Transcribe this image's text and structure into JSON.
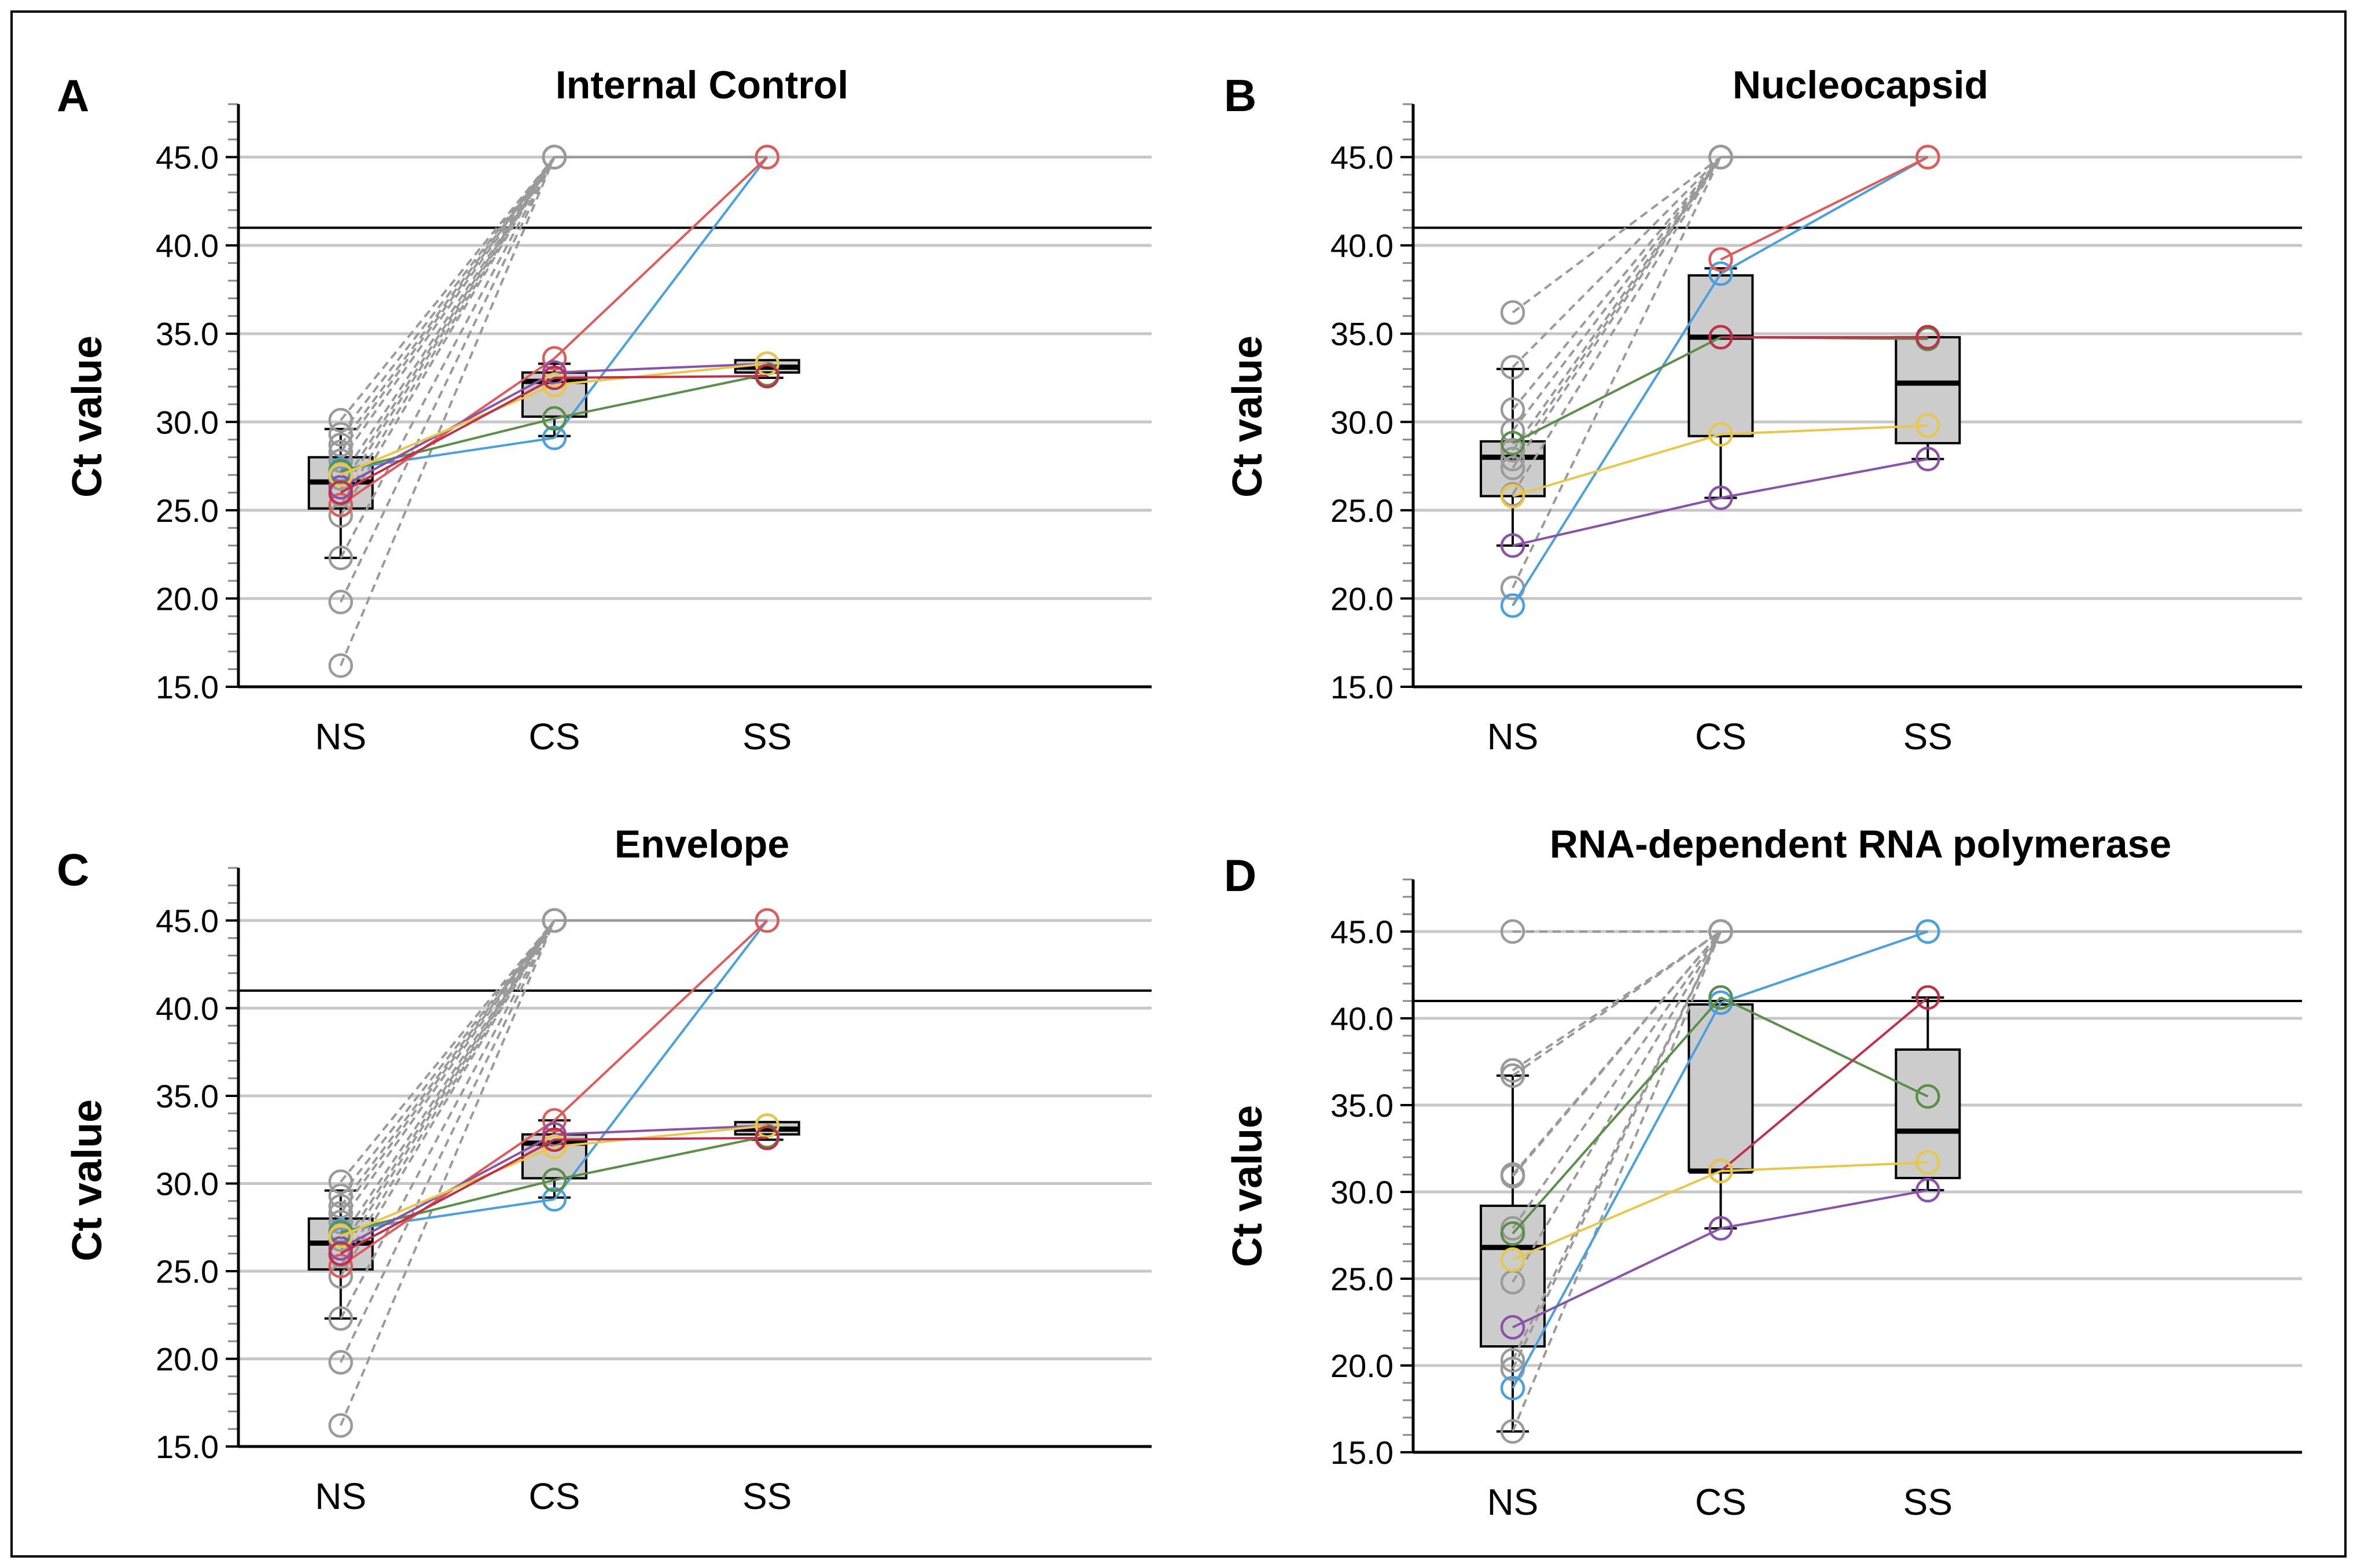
{
  "colors": {
    "blue": "#4a9fde",
    "red": "#e05a5a",
    "green": "#5a8f4a",
    "purple": "#8a52a8",
    "yellow": "#e8c84a",
    "grey": "#9a9a9a",
    "box_fill": "#cccccc"
  },
  "chart_data": [
    {
      "type": "box-with-paired-lines",
      "panel_letter": "A",
      "title": "Internal Control",
      "ylabel": "Ct value",
      "xlabel": "",
      "categories": [
        "NS",
        "CS",
        "SS"
      ],
      "ylim": [
        15,
        48
      ],
      "yticks": [
        "15.0",
        "20.0",
        "25.0",
        "30.0",
        "35.0",
        "40.0",
        "45.0"
      ],
      "ytick_values": [
        15,
        20,
        25,
        30,
        35,
        40,
        45
      ],
      "threshold": 41,
      "boxes": [
        {
          "category": "NS",
          "q1": 25.1,
          "median": 26.6,
          "q3": 28.0,
          "whisker_low": 22.3,
          "whisker_high": 29.6
        },
        {
          "category": "CS",
          "q1": 30.3,
          "median": 32.3,
          "q3": 32.8,
          "whisker_low": 29.2,
          "whisker_high": 33.3
        },
        {
          "category": "SS",
          "q1": 32.8,
          "median": 33.1,
          "q3": 33.5,
          "whisker_low": 32.5,
          "whisker_high": 33.5
        }
      ],
      "grey_series": [
        {
          "values": [
            30.1,
            45.0,
            null
          ]
        },
        {
          "values": [
            29.3,
            45.0,
            null
          ]
        },
        {
          "values": [
            28.7,
            45.0,
            null
          ]
        },
        {
          "values": [
            28.3,
            45.0,
            null
          ]
        },
        {
          "values": [
            27.8,
            45.0,
            null
          ]
        },
        {
          "values": [
            26.8,
            45.0,
            null
          ]
        },
        {
          "values": [
            26.3,
            45.0,
            null
          ]
        },
        {
          "values": [
            25.9,
            45.0,
            null
          ]
        },
        {
          "values": [
            25.3,
            45.0,
            null
          ]
        },
        {
          "values": [
            24.7,
            45.0,
            null
          ]
        },
        {
          "values": [
            22.3,
            45.0,
            null
          ]
        },
        {
          "values": [
            19.8,
            45.0,
            null
          ]
        },
        {
          "values": [
            16.2,
            45.0,
            null
          ]
        },
        {
          "values": [
            null,
            45.0,
            45.0
          ]
        }
      ],
      "series": [
        {
          "name": "blue",
          "color": "#4a9fde",
          "values": [
            27.3,
            29.1,
            45.0
          ]
        },
        {
          "name": "red",
          "color": "#e05a5a",
          "values": [
            25.3,
            33.6,
            45.0
          ]
        },
        {
          "name": "green",
          "color": "#5a8f4a",
          "values": [
            27.2,
            30.2,
            32.7
          ]
        },
        {
          "name": "purple",
          "color": "#8a52a8",
          "values": [
            26.3,
            32.8,
            33.3
          ]
        },
        {
          "name": "yellow",
          "color": "#e8c84a",
          "values": [
            27.0,
            32.1,
            33.3
          ]
        },
        {
          "name": "crimson",
          "color": "#c0304a",
          "values": [
            26.0,
            32.5,
            32.6
          ]
        }
      ]
    },
    {
      "type": "box-with-paired-lines",
      "panel_letter": "B",
      "title": "Nucleocapsid",
      "ylabel": "Ct value",
      "xlabel": "",
      "categories": [
        "NS",
        "CS",
        "SS"
      ],
      "ylim": [
        15,
        48
      ],
      "yticks": [
        "15.0",
        "20.0",
        "25.0",
        "30.0",
        "35.0",
        "40.0",
        "45.0"
      ],
      "ytick_values": [
        15,
        20,
        25,
        30,
        35,
        40,
        45
      ],
      "threshold": 41,
      "boxes": [
        {
          "category": "NS",
          "q1": 25.8,
          "median": 28.0,
          "q3": 28.9,
          "whisker_low": 23.0,
          "whisker_high": 33.0
        },
        {
          "category": "CS",
          "q1": 29.2,
          "median": 34.8,
          "q3": 38.3,
          "whisker_low": 25.7,
          "whisker_high": 38.7
        },
        {
          "category": "SS",
          "q1": 28.8,
          "median": 32.2,
          "q3": 34.8,
          "whisker_low": 27.9,
          "whisker_high": 34.8
        }
      ],
      "grey_series": [
        {
          "values": [
            36.2,
            45.0,
            null
          ]
        },
        {
          "values": [
            33.1,
            45.0,
            null
          ]
        },
        {
          "values": [
            30.7,
            45.0,
            null
          ]
        },
        {
          "values": [
            29.5,
            45.0,
            null
          ]
        },
        {
          "values": [
            28.4,
            45.0,
            null
          ]
        },
        {
          "values": [
            27.9,
            45.0,
            null
          ]
        },
        {
          "values": [
            27.4,
            45.0,
            null
          ]
        },
        {
          "values": [
            25.9,
            45.0,
            null
          ]
        },
        {
          "values": [
            20.6,
            45.0,
            null
          ]
        },
        {
          "values": [
            null,
            45.0,
            45.0
          ]
        }
      ],
      "series": [
        {
          "name": "blue",
          "color": "#4a9fde",
          "values": [
            19.6,
            38.4,
            45.0
          ]
        },
        {
          "name": "red",
          "color": "#e05a5a",
          "values": [
            null,
            39.2,
            45.0
          ]
        },
        {
          "name": "green",
          "color": "#5a8f4a",
          "values": [
            28.8,
            34.8,
            34.7
          ]
        },
        {
          "name": "crimson",
          "color": "#c0304a",
          "values": [
            null,
            34.8,
            34.8
          ]
        },
        {
          "name": "yellow",
          "color": "#e8c84a",
          "values": [
            25.8,
            29.3,
            29.8
          ]
        },
        {
          "name": "purple",
          "color": "#8a52a8",
          "values": [
            23.0,
            25.7,
            27.9
          ]
        }
      ]
    },
    {
      "type": "box-with-paired-lines",
      "panel_letter": "C",
      "title": "Envelope",
      "ylabel": "Ct value",
      "xlabel": "",
      "categories": [
        "NS",
        "CS",
        "SS"
      ],
      "ylim": [
        15,
        48
      ],
      "yticks": [
        "15.0",
        "20.0",
        "25.0",
        "30.0",
        "35.0",
        "40.0",
        "45.0"
      ],
      "ytick_values": [
        15,
        20,
        25,
        30,
        35,
        40,
        45
      ],
      "threshold": 41,
      "boxes": [
        {
          "category": "NS",
          "q1": 25.1,
          "median": 26.6,
          "q3": 28.0,
          "whisker_low": 22.3,
          "whisker_high": 29.6
        },
        {
          "category": "CS",
          "q1": 30.3,
          "median": 32.3,
          "q3": 32.8,
          "whisker_low": 29.2,
          "whisker_high": 33.6
        },
        {
          "category": "SS",
          "q1": 32.8,
          "median": 33.1,
          "q3": 33.5,
          "whisker_low": 32.5,
          "whisker_high": 33.5
        }
      ],
      "grey_series": [
        {
          "values": [
            30.1,
            45.0,
            null
          ]
        },
        {
          "values": [
            29.3,
            45.0,
            null
          ]
        },
        {
          "values": [
            28.7,
            45.0,
            null
          ]
        },
        {
          "values": [
            28.3,
            45.0,
            null
          ]
        },
        {
          "values": [
            27.8,
            45.0,
            null
          ]
        },
        {
          "values": [
            26.8,
            45.0,
            null
          ]
        },
        {
          "values": [
            26.3,
            45.0,
            null
          ]
        },
        {
          "values": [
            25.9,
            45.0,
            null
          ]
        },
        {
          "values": [
            25.3,
            45.0,
            null
          ]
        },
        {
          "values": [
            24.7,
            45.0,
            null
          ]
        },
        {
          "values": [
            22.3,
            45.0,
            null
          ]
        },
        {
          "values": [
            19.8,
            45.0,
            null
          ]
        },
        {
          "values": [
            16.2,
            45.0,
            null
          ]
        },
        {
          "values": [
            null,
            45.0,
            45.0
          ]
        }
      ],
      "series": [
        {
          "name": "blue",
          "color": "#4a9fde",
          "values": [
            27.3,
            29.1,
            45.0
          ]
        },
        {
          "name": "red",
          "color": "#e05a5a",
          "values": [
            25.3,
            33.6,
            45.0
          ]
        },
        {
          "name": "green",
          "color": "#5a8f4a",
          "values": [
            27.2,
            30.2,
            32.7
          ]
        },
        {
          "name": "purple",
          "color": "#8a52a8",
          "values": [
            26.3,
            32.8,
            33.3
          ]
        },
        {
          "name": "yellow",
          "color": "#e8c84a",
          "values": [
            27.0,
            32.1,
            33.3
          ]
        },
        {
          "name": "crimson",
          "color": "#c0304a",
          "values": [
            26.0,
            32.5,
            32.6
          ]
        }
      ]
    },
    {
      "type": "box-with-paired-lines",
      "panel_letter": "D",
      "title": "RNA-dependent RNA polymerase",
      "ylabel": "Ct value",
      "xlabel": "",
      "categories": [
        "NS",
        "CS",
        "SS"
      ],
      "ylim": [
        15,
        48
      ],
      "yticks": [
        "15.0",
        "20.0",
        "25.0",
        "30.0",
        "35.0",
        "40.0",
        "45.0"
      ],
      "ytick_values": [
        15,
        20,
        25,
        30,
        35,
        40,
        45
      ],
      "threshold": 41,
      "boxes": [
        {
          "category": "NS",
          "q1": 21.1,
          "median": 26.8,
          "q3": 29.2,
          "whisker_low": 16.2,
          "whisker_high": 36.7
        },
        {
          "category": "CS",
          "q1": 31.2,
          "median": 31.2,
          "q3": 40.8,
          "whisker_low": 27.9,
          "whisker_high": 41.0
        },
        {
          "category": "SS",
          "q1": 30.8,
          "median": 33.5,
          "q3": 38.2,
          "whisker_low": 30.1,
          "whisker_high": 41.2
        }
      ],
      "grey_series": [
        {
          "values": [
            45.0,
            45.0,
            null
          ]
        },
        {
          "values": [
            37.0,
            45.0,
            null
          ]
        },
        {
          "values": [
            36.7,
            45.0,
            null
          ]
        },
        {
          "values": [
            31.0,
            45.0,
            null
          ]
        },
        {
          "values": [
            30.9,
            45.0,
            null
          ]
        },
        {
          "values": [
            27.9,
            45.0,
            null
          ]
        },
        {
          "values": [
            24.8,
            45.0,
            null
          ]
        },
        {
          "values": [
            20.3,
            45.0,
            null
          ]
        },
        {
          "values": [
            19.8,
            45.0,
            null
          ]
        },
        {
          "values": [
            16.2,
            45.0,
            null
          ]
        },
        {
          "values": [
            null,
            45.0,
            45.0
          ]
        }
      ],
      "series": [
        {
          "name": "blue",
          "color": "#4a9fde",
          "values": [
            18.7,
            40.9,
            45.0
          ]
        },
        {
          "name": "green",
          "color": "#5a8f4a",
          "values": [
            27.6,
            41.2,
            35.5
          ]
        },
        {
          "name": "red",
          "color": "#c0304a",
          "values": [
            null,
            31.2,
            41.2
          ]
        },
        {
          "name": "yellow",
          "color": "#e8c84a",
          "values": [
            26.1,
            31.2,
            31.7
          ]
        },
        {
          "name": "purple",
          "color": "#8a52a8",
          "values": [
            22.2,
            27.9,
            30.1
          ]
        }
      ]
    }
  ]
}
